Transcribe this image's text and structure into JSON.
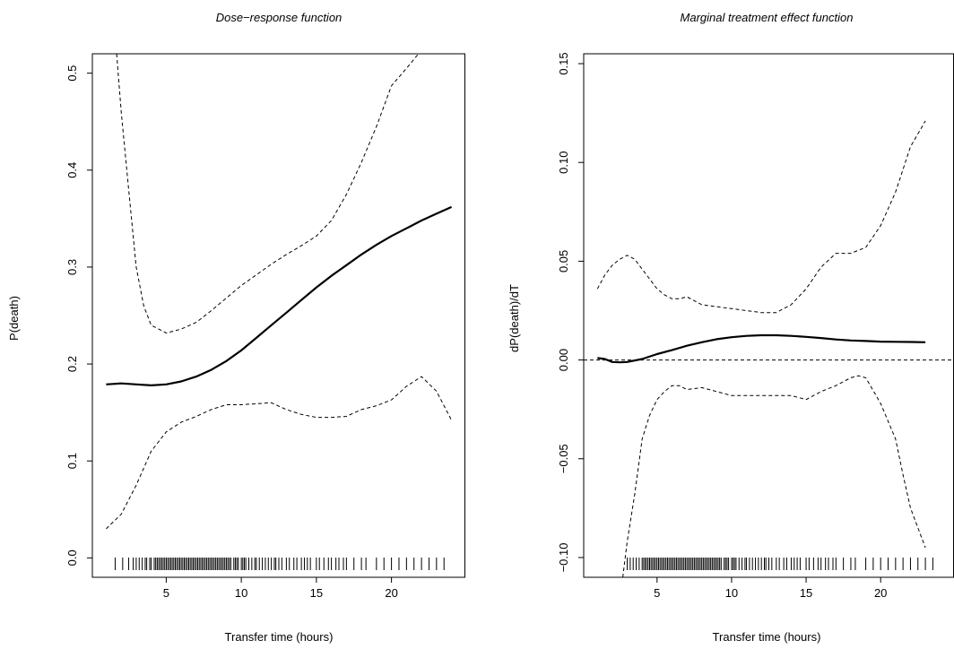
{
  "chart_data": [
    {
      "type": "line",
      "title": "Dose−response function",
      "xlabel": "Transfer time (hours)",
      "ylabel": "P(death)",
      "xlim": [
        0.08,
        24.92
      ],
      "ylim": [
        -0.02,
        0.52
      ],
      "xticks": [
        5,
        10,
        15,
        20
      ],
      "xtick_labels": [
        "5",
        "10",
        "15",
        "20"
      ],
      "yticks": [
        0.0,
        0.1,
        0.2,
        0.3,
        0.4,
        0.5
      ],
      "ytick_labels": [
        "0.0",
        "0.1",
        "0.2",
        "0.3",
        "0.4",
        "0.5"
      ],
      "reference_line": null,
      "series": [
        {
          "style": "solid",
          "x": [
            1,
            2,
            3,
            4,
            5,
            6,
            7,
            8,
            9,
            10,
            11,
            12,
            13,
            14,
            15,
            16,
            17,
            18,
            19,
            20,
            21,
            22,
            23,
            24
          ],
          "values": [
            0.179,
            0.18,
            0.179,
            0.178,
            0.179,
            0.182,
            0.187,
            0.194,
            0.203,
            0.214,
            0.227,
            0.24,
            0.253,
            0.266,
            0.279,
            0.291,
            0.302,
            0.313,
            0.323,
            0.332,
            0.34,
            0.348,
            0.355,
            0.362
          ]
        },
        {
          "style": "dashed",
          "x": [
            1.7,
            2,
            2.5,
            3,
            3.5,
            4,
            4.5,
            5,
            6,
            7,
            8,
            9,
            10,
            11,
            12,
            13,
            14,
            15,
            16,
            17,
            18,
            19,
            20,
            21,
            21.8,
            22.2
          ],
          "values": [
            0.52,
            0.46,
            0.38,
            0.3,
            0.26,
            0.24,
            0.236,
            0.232,
            0.236,
            0.243,
            0.255,
            0.268,
            0.281,
            0.292,
            0.303,
            0.313,
            0.322,
            0.332,
            0.348,
            0.375,
            0.408,
            0.445,
            0.487,
            0.505,
            0.52,
            0.52
          ]
        },
        {
          "style": "dashed",
          "x": [
            1,
            2,
            3,
            4,
            5,
            6,
            7,
            8,
            9,
            10,
            11,
            12,
            13,
            14,
            15,
            16,
            17,
            18,
            19,
            20,
            21,
            22,
            23,
            24
          ],
          "values": [
            0.03,
            0.045,
            0.075,
            0.11,
            0.13,
            0.14,
            0.146,
            0.153,
            0.158,
            0.158,
            0.159,
            0.16,
            0.153,
            0.148,
            0.145,
            0.145,
            0.146,
            0.153,
            0.157,
            0.163,
            0.177,
            0.187,
            0.172,
            0.142
          ]
        }
      ],
      "rug": [
        1.6,
        2.1,
        2.5,
        2.8,
        3.0,
        3.2,
        3.4,
        3.6,
        3.7,
        3.9,
        4.0,
        4.2,
        4.3,
        4.4,
        4.5,
        4.6,
        4.7,
        4.8,
        4.9,
        5.0,
        5.1,
        5.2,
        5.3,
        5.4,
        5.5,
        5.6,
        5.7,
        5.8,
        5.9,
        6.0,
        6.1,
        6.2,
        6.3,
        6.4,
        6.5,
        6.6,
        6.7,
        6.8,
        6.9,
        7.0,
        7.1,
        7.2,
        7.3,
        7.4,
        7.5,
        7.6,
        7.7,
        7.8,
        7.9,
        8.0,
        8.1,
        8.2,
        8.3,
        8.4,
        8.5,
        8.6,
        8.7,
        8.8,
        8.9,
        9.0,
        9.1,
        9.2,
        9.3,
        9.5,
        9.6,
        9.7,
        9.8,
        10.0,
        10.1,
        10.2,
        10.3,
        10.5,
        10.7,
        10.9,
        11.0,
        11.2,
        11.4,
        11.6,
        11.8,
        12.0,
        12.2,
        12.3,
        12.5,
        12.7,
        13.0,
        13.2,
        13.5,
        13.7,
        14.0,
        14.2,
        14.4,
        14.6,
        15.0,
        15.2,
        15.5,
        15.8,
        16.0,
        16.3,
        16.5,
        16.8,
        17.0,
        17.5,
        18.0,
        18.3,
        19.0,
        19.5,
        20.0,
        20.5,
        21.0,
        21.5,
        22.0,
        22.5,
        23.0,
        23.5
      ]
    },
    {
      "type": "line",
      "title": "Marginal treatment effect function",
      "xlabel": "Transfer time (hours)",
      "ylabel": "dP(death)/dT",
      "xlim": [
        0.08,
        24.92
      ],
      "ylim": [
        -0.11,
        0.155
      ],
      "xticks": [
        5,
        10,
        15,
        20
      ],
      "xtick_labels": [
        "5",
        "10",
        "15",
        "20"
      ],
      "yticks": [
        -0.1,
        -0.05,
        0.0,
        0.05,
        0.1,
        0.15
      ],
      "ytick_labels": [
        "−0.10",
        "−0.05",
        "0.00",
        "0.05",
        "0.10",
        "0.15"
      ],
      "reference_line": 0,
      "series": [
        {
          "style": "solid",
          "x": [
            1,
            1.5,
            2,
            2.5,
            3,
            4,
            5,
            6,
            7,
            8,
            9,
            10,
            11,
            12,
            13,
            14,
            15,
            16,
            17,
            18,
            19,
            20,
            21,
            22,
            23
          ],
          "values": [
            0.001,
            0.0005,
            -0.001,
            -0.0012,
            -0.001,
            0.0005,
            0.003,
            0.005,
            0.0072,
            0.009,
            0.0105,
            0.0115,
            0.0122,
            0.0125,
            0.0125,
            0.0122,
            0.0117,
            0.0111,
            0.0104,
            0.0099,
            0.0096,
            0.0093,
            0.0092,
            0.0091,
            0.009
          ]
        },
        {
          "style": "dashed",
          "x": [
            1,
            1.5,
            2,
            2.5,
            3,
            3.5,
            4,
            5,
            5.5,
            6,
            6.5,
            7,
            8,
            9,
            10,
            11,
            12,
            13,
            14,
            15,
            16,
            17,
            18,
            19,
            20,
            21,
            22,
            23
          ],
          "values": [
            0.036,
            0.043,
            0.048,
            0.051,
            0.053,
            0.051,
            0.046,
            0.036,
            0.033,
            0.031,
            0.031,
            0.032,
            0.028,
            0.027,
            0.026,
            0.025,
            0.024,
            0.024,
            0.028,
            0.036,
            0.047,
            0.054,
            0.054,
            0.057,
            0.068,
            0.085,
            0.108,
            0.121
          ]
        },
        {
          "style": "dashed",
          "x": [
            2.7,
            3,
            3.5,
            4,
            4.5,
            5,
            5.5,
            6,
            6.5,
            7,
            8,
            9,
            10,
            11,
            12,
            13,
            14,
            15,
            16,
            17,
            18,
            18.5,
            19,
            20,
            21,
            21.5,
            22,
            22.5,
            23
          ],
          "values": [
            -0.11,
            -0.092,
            -0.068,
            -0.04,
            -0.028,
            -0.02,
            -0.016,
            -0.013,
            -0.013,
            -0.015,
            -0.014,
            -0.016,
            -0.018,
            -0.018,
            -0.018,
            -0.018,
            -0.018,
            -0.02,
            -0.016,
            -0.013,
            -0.009,
            -0.008,
            -0.009,
            -0.022,
            -0.04,
            -0.058,
            -0.075,
            -0.085,
            -0.095
          ]
        }
      ],
      "rug": [
        3.0,
        3.2,
        3.4,
        3.6,
        3.8,
        4.0,
        4.1,
        4.2,
        4.3,
        4.4,
        4.5,
        4.6,
        4.7,
        4.8,
        4.9,
        5.0,
        5.1,
        5.2,
        5.3,
        5.4,
        5.5,
        5.6,
        5.7,
        5.8,
        5.9,
        6.0,
        6.1,
        6.2,
        6.3,
        6.4,
        6.5,
        6.6,
        6.7,
        6.8,
        6.9,
        7.0,
        7.1,
        7.2,
        7.3,
        7.4,
        7.5,
        7.6,
        7.7,
        7.8,
        7.9,
        8.0,
        8.1,
        8.2,
        8.3,
        8.4,
        8.5,
        8.6,
        8.7,
        8.8,
        8.9,
        9.0,
        9.1,
        9.2,
        9.3,
        9.5,
        9.6,
        9.7,
        9.8,
        10.0,
        10.1,
        10.2,
        10.3,
        10.5,
        10.7,
        10.9,
        11.0,
        11.2,
        11.4,
        11.6,
        11.8,
        12.0,
        12.2,
        12.3,
        12.5,
        12.7,
        13.0,
        13.2,
        13.5,
        13.7,
        14.0,
        14.2,
        14.4,
        14.6,
        15.0,
        15.2,
        15.5,
        15.8,
        16.0,
        16.3,
        16.5,
        16.8,
        17.0,
        17.5,
        18.0,
        18.3,
        19.0,
        19.5,
        20.0,
        20.5,
        21.0,
        21.5,
        22.0,
        22.5,
        23.0,
        23.5
      ]
    }
  ]
}
